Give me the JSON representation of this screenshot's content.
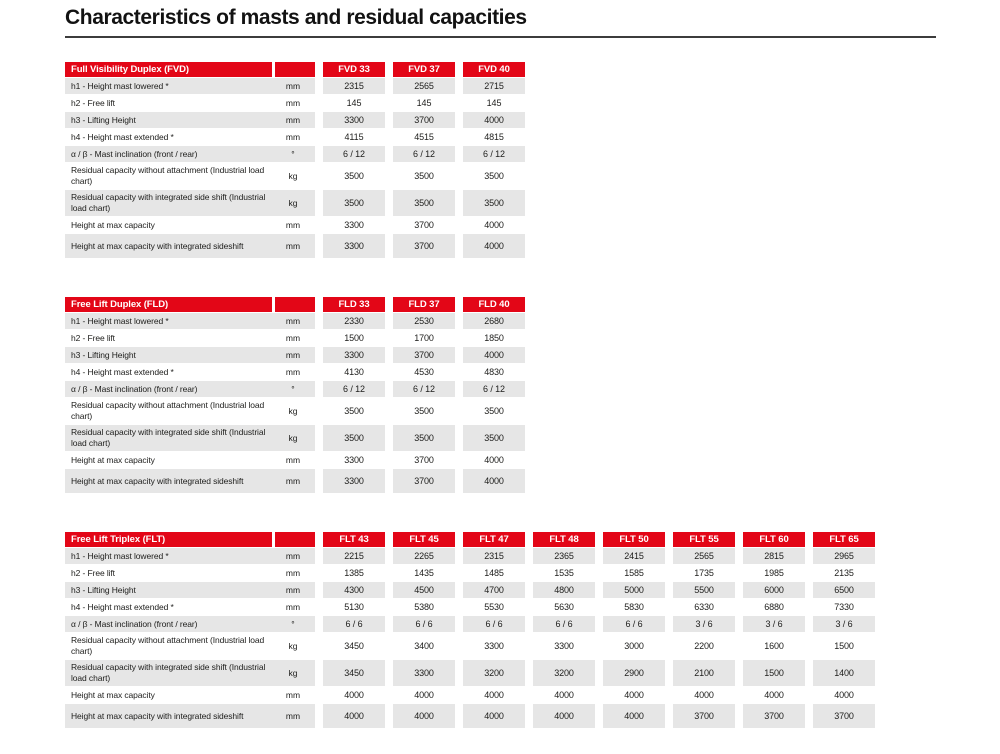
{
  "page": {
    "title": "Characteristics of masts and residual capacities"
  },
  "colors": {
    "accent_red": "#e30617",
    "stripe_gray": "#e6e6e6",
    "rule_gray": "#3c3c3c"
  },
  "tables": [
    {
      "name": "Full Visibility Duplex (FVD)",
      "columns": [
        "FVD 33",
        "FVD 37",
        "FVD 40"
      ],
      "rows": [
        {
          "label": "h1 - Height mast lowered *",
          "unit": "mm",
          "values": [
            "2315",
            "2565",
            "2715"
          ]
        },
        {
          "label": "h2 - Free lift",
          "unit": "mm",
          "values": [
            "145",
            "145",
            "145"
          ]
        },
        {
          "label": "h3 - Lifting Height",
          "unit": "mm",
          "values": [
            "3300",
            "3700",
            "4000"
          ]
        },
        {
          "label": "h4 - Height mast extended *",
          "unit": "mm",
          "values": [
            "4115",
            "4515",
            "4815"
          ]
        },
        {
          "label": "α / β - Mast inclination (front / rear)",
          "unit": "°",
          "values": [
            "6 / 12",
            "6 / 12",
            "6 / 12"
          ]
        },
        {
          "label": "Residual capacity without attachment (Industrial load chart)",
          "unit": "kg",
          "values": [
            "3500",
            "3500",
            "3500"
          ]
        },
        {
          "label": "Residual capacity with integrated side shift (Industrial load chart)",
          "unit": "kg",
          "values": [
            "3500",
            "3500",
            "3500"
          ]
        },
        {
          "label": "Height at max capacity",
          "unit": "mm",
          "values": [
            "3300",
            "3700",
            "4000"
          ]
        },
        {
          "label": "Height at max capacity with integrated sideshift",
          "unit": "mm",
          "values": [
            "3300",
            "3700",
            "4000"
          ]
        }
      ]
    },
    {
      "name": "Free Lift Duplex (FLD)",
      "columns": [
        "FLD 33",
        "FLD 37",
        "FLD 40"
      ],
      "rows": [
        {
          "label": "h1 - Height mast lowered *",
          "unit": "mm",
          "values": [
            "2330",
            "2530",
            "2680"
          ]
        },
        {
          "label": "h2 - Free lift",
          "unit": "mm",
          "values": [
            "1500",
            "1700",
            "1850"
          ]
        },
        {
          "label": "h3 - Lifting Height",
          "unit": "mm",
          "values": [
            "3300",
            "3700",
            "4000"
          ]
        },
        {
          "label": "h4 - Height mast extended *",
          "unit": "mm",
          "values": [
            "4130",
            "4530",
            "4830"
          ]
        },
        {
          "label": "α / β - Mast inclination (front / rear)",
          "unit": "°",
          "values": [
            "6 / 12",
            "6 / 12",
            "6 / 12"
          ]
        },
        {
          "label": "Residual capacity without attachment (Industrial load chart)",
          "unit": "kg",
          "values": [
            "3500",
            "3500",
            "3500"
          ]
        },
        {
          "label": "Residual capacity with integrated side shift (Industrial load chart)",
          "unit": "kg",
          "values": [
            "3500",
            "3500",
            "3500"
          ]
        },
        {
          "label": "Height at max capacity",
          "unit": "mm",
          "values": [
            "3300",
            "3700",
            "4000"
          ]
        },
        {
          "label": "Height at max capacity with integrated sideshift",
          "unit": "mm",
          "values": [
            "3300",
            "3700",
            "4000"
          ]
        }
      ]
    },
    {
      "name": "Free Lift Triplex (FLT)",
      "columns": [
        "FLT 43",
        "FLT 45",
        "FLT 47",
        "FLT 48",
        "FLT 50",
        "FLT 55",
        "FLT 60",
        "FLT 65"
      ],
      "rows": [
        {
          "label": "h1 - Height mast lowered *",
          "unit": "mm",
          "values": [
            "2215",
            "2265",
            "2315",
            "2365",
            "2415",
            "2565",
            "2815",
            "2965"
          ]
        },
        {
          "label": "h2 - Free lift",
          "unit": "mm",
          "values": [
            "1385",
            "1435",
            "1485",
            "1535",
            "1585",
            "1735",
            "1985",
            "2135"
          ]
        },
        {
          "label": "h3 - Lifting Height",
          "unit": "mm",
          "values": [
            "4300",
            "4500",
            "4700",
            "4800",
            "5000",
            "5500",
            "6000",
            "6500"
          ]
        },
        {
          "label": "h4 - Height mast extended *",
          "unit": "mm",
          "values": [
            "5130",
            "5380",
            "5530",
            "5630",
            "5830",
            "6330",
            "6880",
            "7330"
          ]
        },
        {
          "label": "α / β - Mast inclination (front / rear)",
          "unit": "°",
          "values": [
            "6 / 6",
            "6 / 6",
            "6 / 6",
            "6 / 6",
            "6 / 6",
            "3 / 6",
            "3 / 6",
            "3 / 6"
          ]
        },
        {
          "label": "Residual capacity without attachment (Industrial load chart)",
          "unit": "kg",
          "values": [
            "3450",
            "3400",
            "3300",
            "3300",
            "3000",
            "2200",
            "1600",
            "1500"
          ]
        },
        {
          "label": "Residual capacity with integrated side shift (Industrial load chart)",
          "unit": "kg",
          "values": [
            "3450",
            "3300",
            "3200",
            "3200",
            "2900",
            "2100",
            "1500",
            "1400"
          ]
        },
        {
          "label": "Height at max capacity",
          "unit": "mm",
          "values": [
            "4000",
            "4000",
            "4000",
            "4000",
            "4000",
            "4000",
            "4000",
            "4000"
          ]
        },
        {
          "label": "Height at max capacity with integrated sideshift",
          "unit": "mm",
          "values": [
            "4000",
            "4000",
            "4000",
            "4000",
            "4000",
            "3700",
            "3700",
            "3700"
          ]
        }
      ]
    }
  ]
}
